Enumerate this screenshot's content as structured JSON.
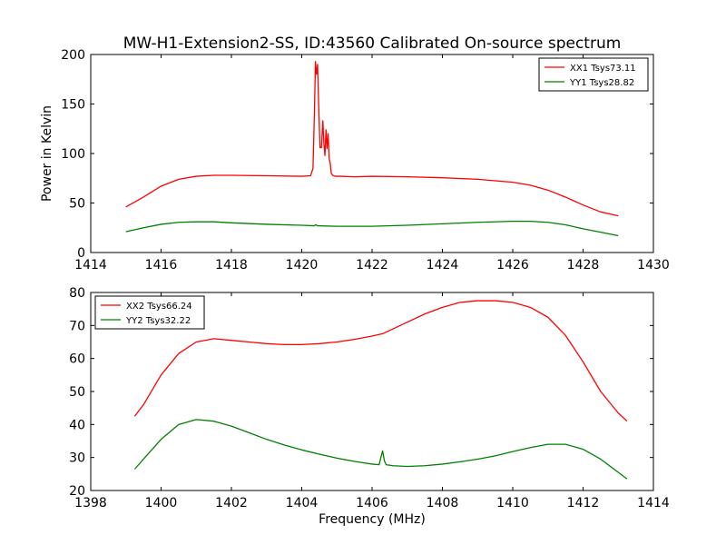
{
  "figure": {
    "title": "MW-H1-Extension2-SS, ID:43560 Calibrated On-source spectrum"
  },
  "chart_data": [
    {
      "type": "line",
      "title": "MW-H1-Extension2-SS, ID:43560 Calibrated On-source spectrum",
      "xlabel": "",
      "ylabel": "Power in Kelvin",
      "xlim": [
        1414,
        1430
      ],
      "ylim": [
        0,
        200
      ],
      "xticks": [
        "1414",
        "1416",
        "1418",
        "1420",
        "1422",
        "1424",
        "1426",
        "1428",
        "1430"
      ],
      "yticks": [
        "0",
        "50",
        "100",
        "150",
        "200"
      ],
      "grid": false,
      "legend_position": "top-right",
      "series": [
        {
          "name": "XX1 Tsys73.11",
          "color": "#ff0000",
          "x": [
            1415.0,
            1415.5,
            1416.0,
            1416.5,
            1417.0,
            1417.5,
            1418.0,
            1419.0,
            1420.0,
            1420.25,
            1420.32,
            1420.36,
            1420.39,
            1420.42,
            1420.45,
            1420.48,
            1420.52,
            1420.56,
            1420.6,
            1420.63,
            1420.66,
            1420.69,
            1420.72,
            1420.75,
            1420.78,
            1420.81,
            1420.84,
            1420.88,
            1420.95,
            1421.1,
            1421.5,
            1422.0,
            1423.0,
            1424.0,
            1425.0,
            1426.0,
            1426.5,
            1427.0,
            1427.5,
            1428.0,
            1428.5,
            1429.0
          ],
          "y": [
            46,
            56,
            67,
            74,
            77,
            78,
            78,
            77.5,
            77,
            77.5,
            85,
            140,
            193,
            180,
            190,
            150,
            106,
            106,
            133,
            110,
            98,
            124,
            105,
            120,
            95,
            90,
            80,
            78,
            77,
            77,
            76.5,
            77,
            76.5,
            75.5,
            74,
            71,
            68,
            63,
            56,
            48,
            41,
            37
          ]
        },
        {
          "name": "YY1 Tsys28.82",
          "color": "#008000",
          "x": [
            1415.0,
            1415.5,
            1416.0,
            1416.5,
            1417.0,
            1417.5,
            1418.0,
            1419.0,
            1420.0,
            1420.35,
            1420.4,
            1420.45,
            1421.0,
            1422.0,
            1423.0,
            1424.0,
            1425.0,
            1426.0,
            1426.5,
            1427.0,
            1427.5,
            1428.0,
            1428.5,
            1429.0
          ],
          "y": [
            21,
            25,
            28.5,
            30.5,
            31,
            31,
            30,
            28.5,
            27.5,
            27,
            28,
            27,
            26.5,
            26.5,
            27.5,
            29,
            30.5,
            31.5,
            31.5,
            30.5,
            28,
            24,
            20.5,
            17
          ]
        }
      ]
    },
    {
      "type": "line",
      "title": "",
      "xlabel": "Frequency (MHz)",
      "ylabel": "",
      "xlim": [
        1398,
        1414
      ],
      "ylim": [
        20,
        80
      ],
      "xticks": [
        "1398",
        "1400",
        "1402",
        "1404",
        "1406",
        "1408",
        "1410",
        "1412",
        "1414"
      ],
      "yticks": [
        "20",
        "30",
        "40",
        "50",
        "60",
        "70",
        "80"
      ],
      "grid": false,
      "legend_position": "top-left",
      "series": [
        {
          "name": "XX2 Tsys66.24",
          "color": "#ff0000",
          "x": [
            1399.25,
            1399.5,
            1400.0,
            1400.5,
            1401.0,
            1401.5,
            1402.0,
            1402.5,
            1403.0,
            1403.5,
            1404.0,
            1404.5,
            1405.0,
            1405.5,
            1406.0,
            1406.3,
            1406.5,
            1407.0,
            1407.5,
            1408.0,
            1408.5,
            1409.0,
            1409.5,
            1410.0,
            1410.5,
            1411.0,
            1411.5,
            1412.0,
            1412.5,
            1413.0,
            1413.25
          ],
          "y": [
            42.5,
            46,
            55,
            61.5,
            65,
            66,
            65.5,
            65,
            64.5,
            64.2,
            64.2,
            64.5,
            65,
            65.8,
            66.8,
            67.5,
            68.5,
            71,
            73.5,
            75.5,
            77,
            77.5,
            77.5,
            77,
            75.5,
            72.5,
            67,
            59,
            50,
            43.5,
            41
          ]
        },
        {
          "name": "YY2 Tsys32.22",
          "color": "#008000",
          "x": [
            1399.25,
            1399.5,
            1400.0,
            1400.5,
            1401.0,
            1401.5,
            1402.0,
            1402.5,
            1403.0,
            1403.5,
            1404.0,
            1404.5,
            1405.0,
            1405.5,
            1406.0,
            1406.2,
            1406.25,
            1406.3,
            1406.35,
            1406.4,
            1406.6,
            1407.0,
            1407.5,
            1408.0,
            1408.5,
            1409.0,
            1409.5,
            1410.0,
            1410.5,
            1411.0,
            1411.5,
            1412.0,
            1412.5,
            1413.0,
            1413.25
          ],
          "y": [
            26.5,
            29.5,
            35.5,
            40,
            41.5,
            41,
            39.5,
            37.5,
            35.5,
            33.8,
            32.3,
            31,
            29.8,
            28.8,
            28,
            27.8,
            30,
            32,
            29,
            27.8,
            27.5,
            27.3,
            27.5,
            28,
            28.7,
            29.5,
            30.5,
            31.8,
            33,
            34,
            34,
            32.5,
            29.5,
            25.5,
            23.5
          ]
        }
      ]
    }
  ]
}
